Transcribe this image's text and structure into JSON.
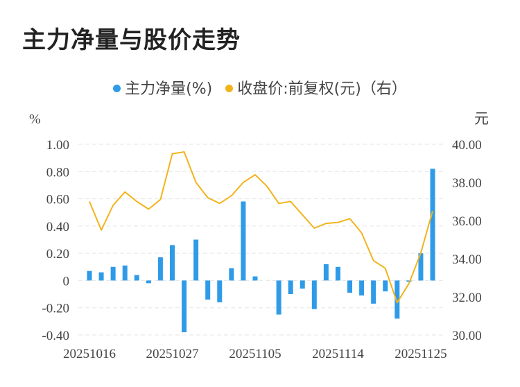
{
  "title": "主力净量与股价走势",
  "colors": {
    "bar": "#2f9be8",
    "line": "#f2b41c",
    "grid": "#e6e6e6",
    "text": "#444444"
  },
  "chart_data": {
    "type": "bar+line",
    "legend": [
      {
        "name": "主力净量(%)",
        "color": "#2f9be8",
        "marker": "dot"
      },
      {
        "name": "收盘价:前复权(元)（右）",
        "color": "#f2b41c",
        "marker": "dot"
      }
    ],
    "left_axis": {
      "unit": "%",
      "min": -0.4,
      "max": 1.0,
      "ticks": [
        "1.00",
        "0.80",
        "0.60",
        "0.40",
        "0.20",
        "0",
        "-0.20",
        "-0.40"
      ]
    },
    "right_axis": {
      "unit": "元",
      "min": 30.0,
      "max": 40.0,
      "ticks": [
        "40.00",
        "38.00",
        "36.00",
        "34.00",
        "32.00",
        "30.00"
      ]
    },
    "x_ticks": [
      "20251016",
      "20251027",
      "20251105",
      "20251114",
      "20251125"
    ],
    "x_tick_index": [
      0,
      7,
      14,
      21,
      28
    ],
    "grid": true,
    "legend_position": "top-center",
    "bars": [
      0.07,
      0.06,
      0.1,
      0.11,
      0.04,
      -0.02,
      0.17,
      0.26,
      -0.38,
      0.3,
      -0.14,
      -0.16,
      0.09,
      0.58,
      0.03,
      0.0,
      -0.25,
      -0.1,
      -0.06,
      -0.21,
      0.12,
      0.1,
      -0.09,
      -0.11,
      -0.17,
      -0.08,
      -0.28,
      -0.01,
      0.2,
      0.82
    ],
    "close": [
      37.0,
      35.5,
      36.8,
      37.5,
      37.0,
      36.6,
      37.1,
      39.5,
      39.6,
      38.0,
      37.2,
      36.9,
      37.3,
      38.0,
      38.4,
      37.8,
      36.9,
      37.0,
      36.3,
      35.6,
      35.85,
      35.9,
      36.1,
      35.35,
      33.9,
      33.5,
      31.7,
      32.7,
      34.3,
      36.5
    ]
  }
}
